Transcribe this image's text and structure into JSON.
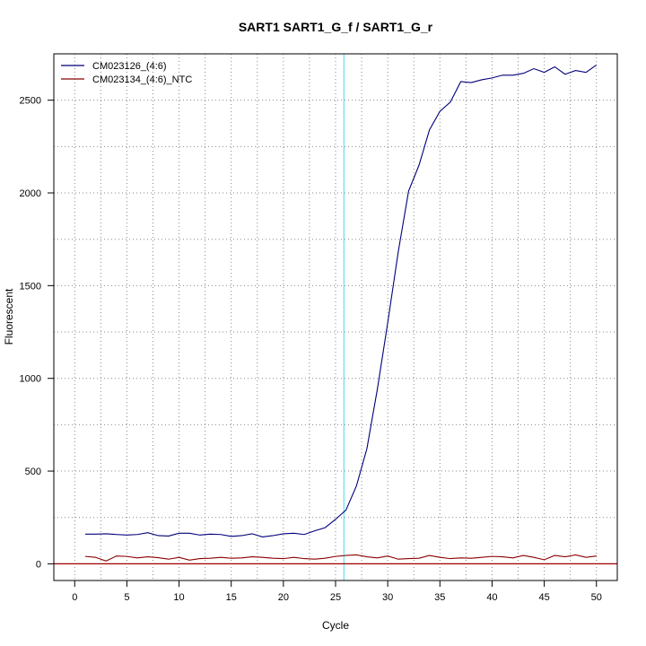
{
  "chart_data": {
    "type": "line",
    "title": "SART1  SART1_G_f / SART1_G_r",
    "xlabel": "Cycle",
    "ylabel": "Fluorescent",
    "xlim": [
      -2,
      52
    ],
    "ylim": [
      -90,
      2750
    ],
    "x_ticks": [
      0,
      5,
      10,
      15,
      20,
      25,
      30,
      35,
      40,
      45,
      50
    ],
    "y_ticks": [
      0,
      500,
      1000,
      1500,
      2000,
      2500
    ],
    "grid": true,
    "grid_style": "dotted",
    "legend_position": "top-left",
    "threshold": {
      "x": 25.8,
      "color": "#66e0f0"
    },
    "baseline": {
      "y": 0,
      "color": "#a00000"
    },
    "series": [
      {
        "name": "CM023126_(4:6)",
        "color": "#00007a",
        "x": [
          1,
          2,
          3,
          4,
          5,
          6,
          7,
          8,
          9,
          10,
          11,
          12,
          13,
          14,
          15,
          16,
          17,
          18,
          19,
          20,
          21,
          22,
          23,
          24,
          25,
          26,
          27,
          28,
          29,
          30,
          31,
          32,
          33,
          34,
          35,
          36,
          37,
          38,
          39,
          40,
          41,
          42,
          43,
          44,
          45,
          46,
          47,
          48,
          49,
          50
        ],
        "values": [
          160,
          160,
          162,
          158,
          155,
          158,
          168,
          152,
          150,
          165,
          165,
          155,
          160,
          158,
          148,
          152,
          162,
          145,
          152,
          162,
          165,
          158,
          178,
          195,
          240,
          290,
          420,
          620,
          940,
          1300,
          1680,
          2010,
          2150,
          2340,
          2440,
          2490,
          2600,
          2595,
          2610,
          2620,
          2635,
          2635,
          2645,
          2670,
          2650,
          2680,
          2640,
          2660,
          2650,
          2690
        ]
      },
      {
        "name": "CM023134_(4:6)_NTC",
        "color": "#8b0000",
        "x": [
          1,
          2,
          3,
          4,
          5,
          6,
          7,
          8,
          9,
          10,
          11,
          12,
          13,
          14,
          15,
          16,
          17,
          18,
          19,
          20,
          21,
          22,
          23,
          24,
          25,
          26,
          27,
          28,
          29,
          30,
          31,
          32,
          33,
          34,
          35,
          36,
          37,
          38,
          39,
          40,
          41,
          42,
          43,
          44,
          45,
          46,
          47,
          48,
          49,
          50
        ],
        "values": [
          40,
          35,
          15,
          42,
          40,
          32,
          38,
          33,
          25,
          35,
          20,
          28,
          30,
          35,
          30,
          32,
          38,
          35,
          30,
          28,
          35,
          28,
          25,
          30,
          40,
          45,
          48,
          38,
          32,
          42,
          25,
          28,
          30,
          45,
          35,
          28,
          32,
          30,
          35,
          40,
          38,
          32,
          45,
          35,
          22,
          45,
          38,
          48,
          35,
          42
        ]
      }
    ]
  }
}
